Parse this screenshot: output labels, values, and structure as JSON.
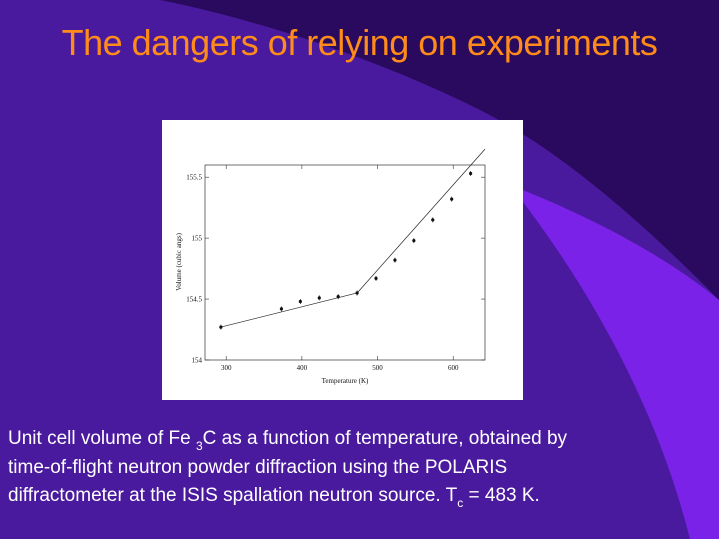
{
  "slide": {
    "title": "The dangers of relying on experiments",
    "caption": {
      "line1_a": "Unit cell volume of Fe",
      "line1_sub": "3",
      "line1_b": "C as a function of temperature, obtained by",
      "line2": "time-of-flight neutron powder diffraction using the POLARIS",
      "line3_a": "diffractometer at the ISIS  spallation neutron source.  T",
      "line3_sub": "c",
      "line3_b": " = 483 K."
    }
  },
  "colors": {
    "background": "#4a1a9e",
    "dark_band": "#2a0a5e",
    "light_band": "#7a22e8",
    "title": "#ff8c1a",
    "caption": "#ffffff"
  },
  "chart_data": {
    "type": "line",
    "xlabel": "Temperature  (K)",
    "ylabel": "Volume (cubic angs)",
    "xlim": [
      272,
      642
    ],
    "ylim": [
      154.0,
      155.6
    ],
    "xticks": [
      300,
      400,
      500,
      600
    ],
    "yticks": [
      154,
      154.5,
      155,
      155.5
    ],
    "ytick_labels": [
      "154",
      "154.5",
      "155",
      "155.5"
    ],
    "points": [
      {
        "x": 293,
        "y": 154.27
      },
      {
        "x": 373,
        "y": 154.42
      },
      {
        "x": 398,
        "y": 154.48
      },
      {
        "x": 423,
        "y": 154.51
      },
      {
        "x": 448,
        "y": 154.52
      },
      {
        "x": 473,
        "y": 154.55
      },
      {
        "x": 498,
        "y": 154.67
      },
      {
        "x": 523,
        "y": 154.82
      },
      {
        "x": 548,
        "y": 154.98
      },
      {
        "x": 573,
        "y": 155.15
      },
      {
        "x": 598,
        "y": 155.32
      },
      {
        "x": 623,
        "y": 155.53
      }
    ],
    "fit_lines": [
      {
        "from": [
          293,
          154.27
        ],
        "to": [
          473,
          154.55
        ]
      },
      {
        "from": [
          473,
          154.55
        ],
        "to": [
          642,
          155.73
        ]
      }
    ]
  }
}
